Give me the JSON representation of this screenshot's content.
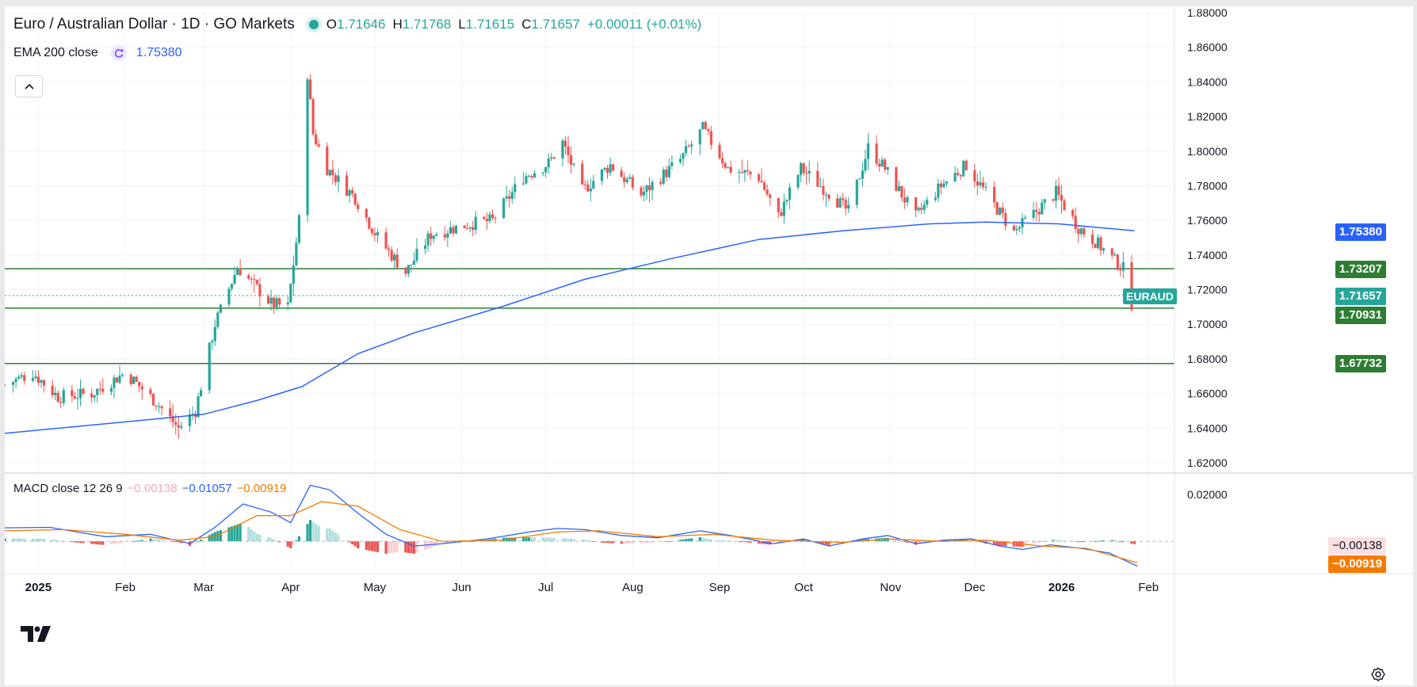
{
  "header": {
    "symbol_title": "Euro / Australian Dollar · 1D · GO Markets",
    "ohlc": {
      "o_label": "O",
      "o": "1.71646",
      "h_label": "H",
      "h": "1.71768",
      "l_label": "L",
      "l": "1.71615",
      "c_label": "C",
      "c": "1.71657",
      "change": "+0.00011 (+0.01%)"
    },
    "ema_label": "EMA 200 close",
    "ema_value": "1.75380"
  },
  "macd_legend": {
    "label": "MACD close 12 26 9",
    "hist": "−0.00138",
    "macd": "−0.01057",
    "signal": "−0.00919"
  },
  "price_axis": {
    "labels": [
      "1.88000",
      "1.86000",
      "1.84000",
      "1.82000",
      "1.80000",
      "1.78000",
      "1.76000",
      "1.74000",
      "1.72000",
      "1.70000",
      "1.68000",
      "1.66000",
      "1.64000",
      "1.62000"
    ],
    "ema_tag": "1.75380",
    "line_tags": [
      "1.73207",
      "1.70931",
      "1.67732"
    ],
    "current_tag": "1.71657",
    "symbol_tag": "EURAUD"
  },
  "macd_axis": {
    "labels": [
      "0.02000"
    ],
    "hist_tag": "−0.00138",
    "signal_tag": "−0.00919"
  },
  "time_axis": {
    "labels": [
      "2025",
      "Feb",
      "Mar",
      "Apr",
      "May",
      "Jun",
      "Jul",
      "Aug",
      "Sep",
      "Oct",
      "Nov",
      "Dec",
      "2026",
      "Feb"
    ]
  },
  "colors": {
    "up": "#26a69a",
    "down": "#ef5350",
    "ema": "#2962ff",
    "signal": "#f57c00",
    "hline": "#2e7d32",
    "grid": "#f0f3fa",
    "text": "#131722"
  },
  "icons": {
    "logo": "tradingview-logo",
    "settings": "gear-icon",
    "collapse": "chevron-up-icon",
    "reload": "reload-icon"
  },
  "chart_data": {
    "type": "candlestick",
    "symbol": "EURAUD",
    "interval": "1D",
    "ylim": [
      1.62,
      1.88
    ],
    "x_range": [
      "2024-12-20",
      "2026-02-10"
    ],
    "last_candle": {
      "date": "2026-01-27",
      "open": 1.71646,
      "high": 1.71768,
      "low": 1.71615,
      "close": 1.71657
    },
    "horizontal_lines": [
      1.73207,
      1.70931,
      1.67732
    ],
    "price_anchors": [
      [
        "2024-12-20",
        1.665
      ],
      [
        "2024-12-30",
        1.672
      ],
      [
        "2025-01-08",
        1.658
      ],
      [
        "2025-01-20",
        1.66
      ],
      [
        "2025-02-01",
        1.672
      ],
      [
        "2025-02-12",
        1.655
      ],
      [
        "2025-02-20",
        1.64
      ],
      [
        "2025-02-26",
        1.65
      ],
      [
        "2025-03-05",
        1.7
      ],
      [
        "2025-03-13",
        1.733
      ],
      [
        "2025-03-25",
        1.712
      ],
      [
        "2025-03-31",
        1.71
      ],
      [
        "2025-04-04",
        1.76
      ],
      [
        "2025-04-07",
        1.845
      ],
      [
        "2025-04-09",
        1.81
      ],
      [
        "2025-04-14",
        1.79
      ],
      [
        "2025-04-24",
        1.773
      ],
      [
        "2025-05-02",
        1.75
      ],
      [
        "2025-05-12",
        1.73
      ],
      [
        "2025-05-21",
        1.752
      ],
      [
        "2025-06-04",
        1.758
      ],
      [
        "2025-06-12",
        1.76
      ],
      [
        "2025-06-23",
        1.785
      ],
      [
        "2025-07-02",
        1.793
      ],
      [
        "2025-07-07",
        1.805
      ],
      [
        "2025-07-14",
        1.777
      ],
      [
        "2025-07-24",
        1.792
      ],
      [
        "2025-08-04",
        1.775
      ],
      [
        "2025-08-18",
        1.795
      ],
      [
        "2025-08-26",
        1.813
      ],
      [
        "2025-09-04",
        1.79
      ],
      [
        "2025-09-15",
        1.785
      ],
      [
        "2025-09-22",
        1.762
      ],
      [
        "2025-09-30",
        1.79
      ],
      [
        "2025-10-10",
        1.776
      ],
      [
        "2025-10-17",
        1.765
      ],
      [
        "2025-10-24",
        1.802
      ],
      [
        "2025-10-30",
        1.79
      ],
      [
        "2025-11-10",
        1.762
      ],
      [
        "2025-11-19",
        1.78
      ],
      [
        "2025-11-28",
        1.792
      ],
      [
        "2025-12-04",
        1.778
      ],
      [
        "2025-12-15",
        1.753
      ],
      [
        "2025-12-30",
        1.776
      ],
      [
        "2026-01-07",
        1.756
      ],
      [
        "2026-01-13",
        1.748
      ],
      [
        "2026-01-19",
        1.738
      ],
      [
        "2026-01-23",
        1.732
      ],
      [
        "2026-01-26",
        1.712
      ],
      [
        "2026-01-28",
        1.7166
      ]
    ],
    "ema200": [
      [
        "2024-12-20",
        1.637
      ],
      [
        "2025-02-10",
        1.645
      ],
      [
        "2025-03-01",
        1.648
      ],
      [
        "2025-03-20",
        1.656
      ],
      [
        "2025-04-05",
        1.664
      ],
      [
        "2025-04-25",
        1.683
      ],
      [
        "2025-05-15",
        1.695
      ],
      [
        "2025-06-15",
        1.71
      ],
      [
        "2025-07-15",
        1.726
      ],
      [
        "2025-08-15",
        1.738
      ],
      [
        "2025-09-15",
        1.749
      ],
      [
        "2025-10-15",
        1.754
      ],
      [
        "2025-11-15",
        1.758
      ],
      [
        "2025-12-05",
        1.759
      ],
      [
        "2025-12-31",
        1.758
      ],
      [
        "2026-01-27",
        1.754
      ]
    ],
    "macd_ylim": [
      -0.0125,
      0.0255
    ],
    "macd_line": [
      [
        "2024-12-20",
        0.0058
      ],
      [
        "2025-01-05",
        0.006
      ],
      [
        "2025-01-25",
        0.002
      ],
      [
        "2025-02-10",
        0.003
      ],
      [
        "2025-02-24",
        -0.001
      ],
      [
        "2025-03-05",
        0.006
      ],
      [
        "2025-03-15",
        0.016
      ],
      [
        "2025-03-25",
        0.0125
      ],
      [
        "2025-04-01",
        0.008
      ],
      [
        "2025-04-08",
        0.024
      ],
      [
        "2025-04-15",
        0.022
      ],
      [
        "2025-04-25",
        0.012
      ],
      [
        "2025-05-05",
        0.003
      ],
      [
        "2025-05-15",
        -0.002
      ],
      [
        "2025-05-25",
        -0.001
      ],
      [
        "2025-06-10",
        0.001
      ],
      [
        "2025-06-25",
        0.004
      ],
      [
        "2025-07-05",
        0.0055
      ],
      [
        "2025-07-15",
        0.005
      ],
      [
        "2025-07-28",
        0.0025
      ],
      [
        "2025-08-10",
        0.0015
      ],
      [
        "2025-08-25",
        0.0045
      ],
      [
        "2025-09-05",
        0.0025
      ],
      [
        "2025-09-20",
        -0.001
      ],
      [
        "2025-10-01",
        0.001
      ],
      [
        "2025-10-10",
        -0.002
      ],
      [
        "2025-10-22",
        0.001
      ],
      [
        "2025-10-31",
        0.0025
      ],
      [
        "2025-11-10",
        -0.001
      ],
      [
        "2025-11-20",
        0.0005
      ],
      [
        "2025-11-30",
        0.001
      ],
      [
        "2025-12-10",
        -0.002
      ],
      [
        "2025-12-18",
        -0.0035
      ],
      [
        "2025-12-28",
        -0.0015
      ],
      [
        "2026-01-08",
        -0.003
      ],
      [
        "2026-01-18",
        -0.005
      ],
      [
        "2026-01-28",
        -0.0106
      ]
    ],
    "signal_line": [
      [
        "2024-12-20",
        0.0045
      ],
      [
        "2025-01-10",
        0.005
      ],
      [
        "2025-02-01",
        0.003
      ],
      [
        "2025-02-20",
        0.0005
      ],
      [
        "2025-03-05",
        0.002
      ],
      [
        "2025-03-20",
        0.011
      ],
      [
        "2025-04-01",
        0.011
      ],
      [
        "2025-04-12",
        0.017
      ],
      [
        "2025-04-25",
        0.015
      ],
      [
        "2025-05-10",
        0.005
      ],
      [
        "2025-05-25",
        0.0
      ],
      [
        "2025-06-15",
        0.0005
      ],
      [
        "2025-07-05",
        0.004
      ],
      [
        "2025-07-20",
        0.0045
      ],
      [
        "2025-08-10",
        0.002
      ],
      [
        "2025-08-30",
        0.003
      ],
      [
        "2025-09-20",
        0.0005
      ],
      [
        "2025-10-15",
        -0.0005
      ],
      [
        "2025-10-31",
        0.001
      ],
      [
        "2025-11-20",
        0.0
      ],
      [
        "2025-12-05",
        0.0005
      ],
      [
        "2025-12-25",
        -0.002
      ],
      [
        "2026-01-10",
        -0.003
      ],
      [
        "2026-01-28",
        -0.0092
      ]
    ]
  }
}
